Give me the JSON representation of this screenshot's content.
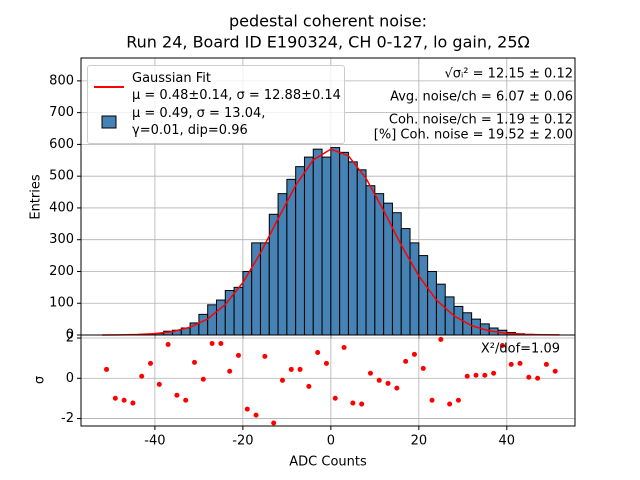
{
  "chart_data": [
    {
      "type": "histogram",
      "title": "pedestal coherent noise:",
      "subtitle": "Run 24, Board ID E190324, CH 0-127, lo gain, 25Ω",
      "ylabel": "Entries",
      "bins": [
        -52,
        -50,
        -48,
        -46,
        -44,
        -42,
        -40,
        -38,
        -36,
        -34,
        -32,
        -30,
        -28,
        -26,
        -24,
        -22,
        -20,
        -18,
        -16,
        -14,
        -12,
        -10,
        -8,
        -6,
        -4,
        -2,
        0,
        2,
        4,
        6,
        8,
        10,
        12,
        14,
        16,
        18,
        20,
        22,
        24,
        26,
        28,
        30,
        32,
        34,
        36,
        38,
        40,
        42,
        44,
        46,
        48,
        50,
        52
      ],
      "series": [
        {
          "name": "μ = 0.49, σ = 13.04,\nγ=0.01, dip=0.96",
          "color": "#4682b4",
          "values": [
            0,
            0,
            0,
            1,
            1,
            2,
            5,
            12,
            15,
            22,
            38,
            65,
            95,
            110,
            140,
            150,
            200,
            290,
            290,
            380,
            445,
            490,
            530,
            560,
            585,
            560,
            590,
            575,
            545,
            520,
            470,
            445,
            415,
            385,
            335,
            290,
            250,
            200,
            160,
            120,
            90,
            70,
            50,
            35,
            22,
            15,
            8,
            4,
            2,
            1,
            0,
            0
          ]
        }
      ],
      "fit": {
        "name": "Gaussian Fit\nμ = 0.48±0.14, σ = 12.88±0.14",
        "color": "#ff0000",
        "x": [
          -52,
          -48,
          -44,
          -40,
          -36,
          -32,
          -28,
          -24,
          -20,
          -16,
          -12,
          -8,
          -4,
          0,
          4,
          8,
          12,
          16,
          20,
          24,
          28,
          32,
          36,
          40,
          44,
          48,
          52
        ],
        "values": [
          0.15,
          0.5,
          1.5,
          4.2,
          10.6,
          24.3,
          50.7,
          96,
          165,
          258,
          366,
          471,
          551,
          585,
          564,
          493,
          392,
          283,
          186,
          110,
          60,
          29.3,
          13,
          5.3,
          1.9,
          0.6,
          0.2
        ]
      },
      "annotations": [
        "√σᵢ² = 12.15 ± 0.12",
        "Avg. noise/ch = 6.07 ± 0.06",
        "Coh. noise/ch = 1.19 ± 0.12",
        "[%] Coh. noise = 19.52  ± 2.00"
      ],
      "xlim": [
        -56.8,
        55.5
      ],
      "ylim": [
        0,
        872
      ],
      "xticks": [
        -40,
        -20,
        0,
        20,
        40
      ],
      "yticks": [
        0,
        100,
        200,
        300,
        400,
        500,
        600,
        700,
        800
      ],
      "grid": true,
      "legend": "upper left"
    },
    {
      "type": "scatter",
      "xlabel": "ADC Counts",
      "ylabel": "σ",
      "annotation": "X²/dof=1.09",
      "color": "#ff0000",
      "x": [
        -51,
        -49,
        -47,
        -45,
        -43,
        -41,
        -39,
        -37,
        -35,
        -33,
        -31,
        -29,
        -27,
        -25,
        -23,
        -21,
        -19,
        -17,
        -15,
        -13,
        -11,
        -9,
        -7,
        -5,
        -3,
        -1,
        1,
        3,
        5,
        7,
        9,
        11,
        13,
        15,
        17,
        19,
        21,
        23,
        25,
        27,
        29,
        31,
        33,
        35,
        37,
        39,
        41,
        43,
        45,
        47,
        49,
        51
      ],
      "values": [
        0.44,
        -0.99,
        -1.09,
        -1.23,
        0.1,
        0.74,
        -0.3,
        1.68,
        -0.84,
        -1.09,
        0.79,
        -0.05,
        1.73,
        1.73,
        0.35,
        1.14,
        -1.53,
        -1.83,
        1.09,
        -2.22,
        -0.1,
        0.44,
        0.44,
        -0.4,
        1.28,
        0.74,
        -0.99,
        1.53,
        -1.23,
        -1.28,
        0.25,
        -0.1,
        -0.25,
        -0.49,
        0.84,
        1.19,
        0.49,
        -1.09,
        1.93,
        -1.28,
        -1.09,
        0.1,
        0.15,
        0.15,
        0.25,
        1.63,
        0.69,
        0.74,
        0.05,
        0,
        0.69,
        0.35
      ],
      "xlim": [
        -56.8,
        55.5
      ],
      "ylim": [
        -2.37,
        2.15
      ],
      "xticks": [
        -40,
        -20,
        0,
        20,
        40
      ],
      "yticks": [
        -2,
        0,
        2
      ],
      "grid": true
    }
  ]
}
